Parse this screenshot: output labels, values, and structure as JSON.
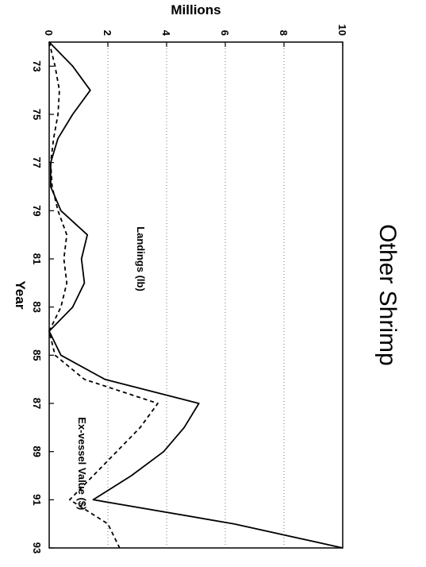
{
  "chart_data": {
    "type": "line",
    "title": "Other Shrimp",
    "xlabel": "Year",
    "ylabel": "Millions",
    "orientation": "rotated 90 degrees clockwise",
    "xlim": [
      72,
      93
    ],
    "ylim": [
      0,
      10
    ],
    "x_ticks": [
      "73",
      "75",
      "77",
      "79",
      "81",
      "83",
      "85",
      "87",
      "89",
      "91",
      "93"
    ],
    "y_ticks": [
      "0",
      "2",
      "4",
      "6",
      "8",
      "10"
    ],
    "grid": "horizontal dotted",
    "x": [
      72,
      73,
      74,
      75,
      76,
      77,
      78,
      79,
      80,
      81,
      82,
      83,
      84,
      85,
      86,
      87,
      88,
      89,
      90,
      91,
      92,
      93
    ],
    "series": [
      {
        "name": "Landings (lb)",
        "style": "solid",
        "values": [
          0.0,
          0.8,
          1.4,
          0.8,
          0.3,
          0.05,
          0.05,
          0.4,
          1.3,
          1.1,
          1.2,
          0.8,
          0.0,
          0.4,
          1.9,
          5.1,
          4.6,
          3.9,
          2.8,
          1.5,
          6.3,
          10.0
        ]
      },
      {
        "name": "Ex-vessel Value ($)",
        "style": "dashed",
        "values": [
          0.0,
          0.2,
          0.35,
          0.3,
          0.15,
          0.05,
          0.1,
          0.3,
          0.6,
          0.5,
          0.6,
          0.4,
          0.0,
          0.2,
          1.2,
          3.7,
          3.1,
          2.3,
          1.5,
          0.7,
          2.0,
          2.4
        ]
      }
    ],
    "annotations": [
      {
        "text": "Landings (lb)",
        "x": 81,
        "y": 3.0
      },
      {
        "text": "Ex-vessel Value ($)",
        "x": 89.5,
        "y": 1.0
      }
    ]
  }
}
